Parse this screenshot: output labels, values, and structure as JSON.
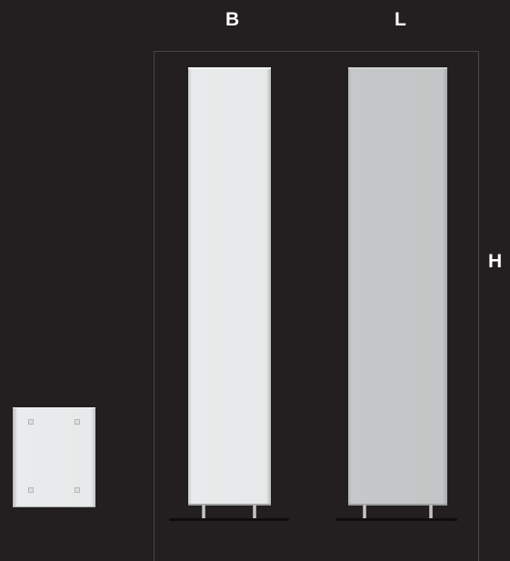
{
  "labels": {
    "width": "B",
    "depth": "L",
    "height": "H"
  },
  "colors": {
    "background": "#231f20",
    "frame_line": "#4a4647",
    "front_panel": "#e6e8e9",
    "side_panel": "#c3c5c6",
    "label_text": "#ffffff"
  }
}
